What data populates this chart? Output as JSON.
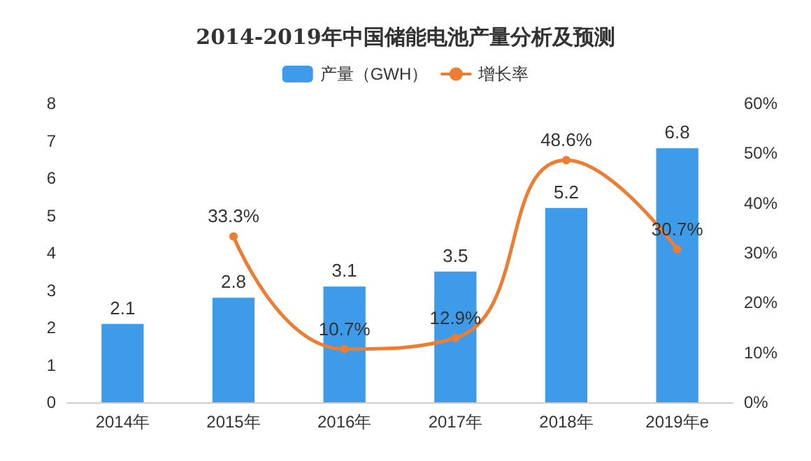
{
  "chart_data": {
    "type": "bar",
    "title": "2014-2019年中国储能电池产量分析及预测",
    "categories": [
      "2014年",
      "2015年",
      "2016年",
      "2017年",
      "2018年",
      "2019年e"
    ],
    "series": [
      {
        "name": "产量（GWH）",
        "color": "#3d9be9",
        "values": [
          2.1,
          2.8,
          3.1,
          3.5,
          5.2,
          6.8
        ]
      },
      {
        "name": "增长率",
        "type": "line",
        "axis": "y2",
        "color": "#ed7d31",
        "marker": "circle",
        "values": [
          null,
          33.3,
          10.7,
          12.9,
          48.6,
          30.7
        ],
        "value_labels": [
          null,
          "33.3%",
          "10.7%",
          "12.9%",
          "48.6%",
          "30.7%"
        ]
      }
    ],
    "ylim": [
      0,
      8
    ],
    "yticks": [
      0,
      1,
      2,
      3,
      4,
      5,
      6,
      7,
      8
    ],
    "y2lim": [
      0,
      60
    ],
    "y2ticks": [
      {
        "value": 0,
        "label": "0%"
      },
      {
        "value": 10,
        "label": "10%"
      },
      {
        "value": 20,
        "label": "20%"
      },
      {
        "value": 30,
        "label": "30%"
      },
      {
        "value": 40,
        "label": "40%"
      },
      {
        "value": 50,
        "label": "50%"
      },
      {
        "value": 60,
        "label": "60%"
      }
    ],
    "data_labels": true,
    "legend": "top",
    "grid": false
  }
}
